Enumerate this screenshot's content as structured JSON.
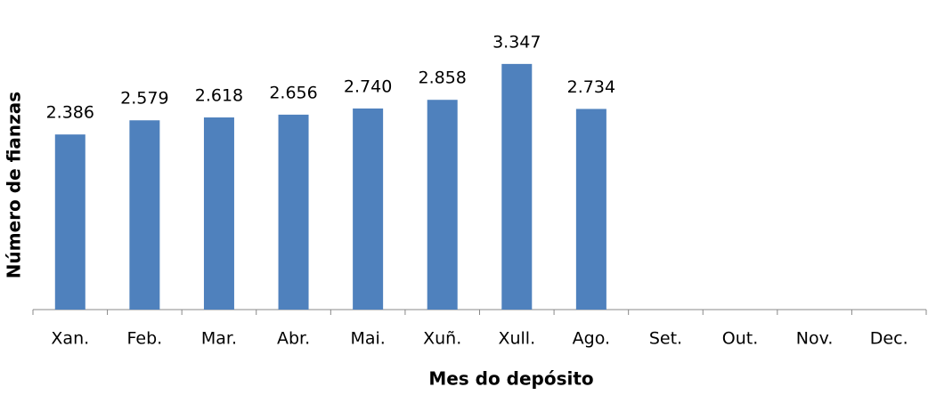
{
  "chart_data": {
    "type": "bar",
    "x_label": "Mes do depósito",
    "y_label": "Número de fianzas",
    "categories": [
      "Xan.",
      "Feb.",
      "Mar.",
      "Abr.",
      "Mai.",
      "Xuñ.",
      "Xull.",
      "Ago.",
      "Set.",
      "Out.",
      "Nov.",
      "Dec."
    ],
    "values": [
      2386,
      2579,
      2618,
      2656,
      2740,
      2858,
      3347,
      2734,
      null,
      null,
      null,
      null
    ],
    "value_labels": [
      "2.386",
      "2.579",
      "2.618",
      "2.656",
      "2.740",
      "2.858",
      "3.347",
      "2.734",
      null,
      null,
      null,
      null
    ],
    "color": "#4f81bd",
    "ylim": [
      0,
      4000
    ],
    "grid": false
  }
}
